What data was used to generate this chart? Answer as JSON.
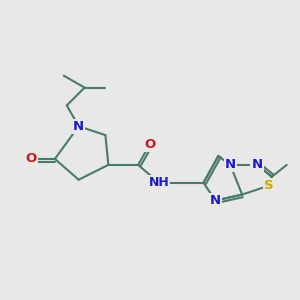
{
  "bg_color": "#e8e8e8",
  "bond_color": "#4a7a6a",
  "bond_width": 1.5,
  "atom_colors": {
    "N": "#1a1acc",
    "O": "#cc1a1a",
    "S": "#ccaa00",
    "C": "#4a7a6a"
  },
  "font_size_atom": 9.5,
  "figsize": [
    3.0,
    3.0
  ],
  "dpi": 100
}
